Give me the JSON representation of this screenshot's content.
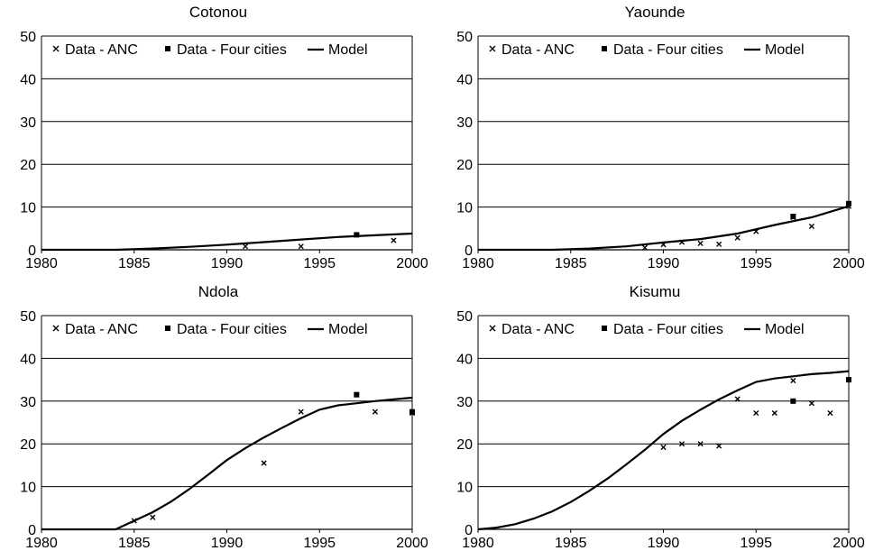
{
  "chart_data": [
    {
      "type": "line",
      "title": "Cotonou",
      "xlim": [
        1980,
        2000
      ],
      "ylim": [
        0,
        50
      ],
      "xticks": [
        "1980",
        "1985",
        "1990",
        "1995",
        "2000"
      ],
      "yticks": [
        "0",
        "10",
        "20",
        "30",
        "40",
        "50"
      ],
      "grid": "horizontal",
      "legend_position": "top",
      "legend": [
        "Data - ANC",
        "Data - Four cities",
        "Model"
      ],
      "series": [
        {
          "name": "Data - ANC",
          "marker": "x",
          "points": [
            [
              1991,
              0.8
            ],
            [
              1994,
              0.8
            ],
            [
              1999,
              2.2
            ]
          ]
        },
        {
          "name": "Data - Four cities",
          "marker": "square",
          "points": [
            [
              1997,
              3.5
            ]
          ]
        },
        {
          "name": "Model",
          "style": "line",
          "points": [
            [
              1980,
              0
            ],
            [
              1984,
              0
            ],
            [
              1986,
              0.3
            ],
            [
              1988,
              0.7
            ],
            [
              1990,
              1.2
            ],
            [
              1992,
              1.8
            ],
            [
              1994,
              2.4
            ],
            [
              1996,
              3.0
            ],
            [
              1998,
              3.4
            ],
            [
              2000,
              3.8
            ]
          ]
        }
      ]
    },
    {
      "type": "line",
      "title": "Yaounde",
      "xlim": [
        1980,
        2000
      ],
      "ylim": [
        0,
        50
      ],
      "xticks": [
        "1980",
        "1985",
        "1990",
        "1995",
        "2000"
      ],
      "yticks": [
        "0",
        "10",
        "20",
        "30",
        "40",
        "50"
      ],
      "grid": "horizontal",
      "legend_position": "top",
      "legend": [
        "Data - ANC",
        "Data - Four cities",
        "Model"
      ],
      "series": [
        {
          "name": "Data - ANC",
          "marker": "x",
          "points": [
            [
              1989,
              0.5
            ],
            [
              1990,
              1.2
            ],
            [
              1991,
              1.8
            ],
            [
              1992,
              1.5
            ],
            [
              1993,
              1.3
            ],
            [
              1994,
              2.8
            ],
            [
              1995,
              4.3
            ],
            [
              1997,
              7.6
            ],
            [
              1998,
              5.5
            ],
            [
              2000,
              10.2
            ]
          ]
        },
        {
          "name": "Data - Four cities",
          "marker": "square",
          "points": [
            [
              1997,
              7.8
            ],
            [
              2000,
              10.8
            ]
          ]
        },
        {
          "name": "Model",
          "style": "line",
          "points": [
            [
              1980,
              0
            ],
            [
              1984,
              0
            ],
            [
              1986,
              0.3
            ],
            [
              1988,
              0.8
            ],
            [
              1990,
              1.7
            ],
            [
              1992,
              2.5
            ],
            [
              1994,
              3.8
            ],
            [
              1996,
              5.8
            ],
            [
              1998,
              7.6
            ],
            [
              2000,
              10.2
            ]
          ]
        }
      ]
    },
    {
      "type": "line",
      "title": "Ndola",
      "xlim": [
        1980,
        2000
      ],
      "ylim": [
        0,
        50
      ],
      "xticks": [
        "1980",
        "1985",
        "1990",
        "1995",
        "2000"
      ],
      "yticks": [
        "0",
        "10",
        "20",
        "30",
        "40",
        "50"
      ],
      "grid": "horizontal",
      "legend_position": "top",
      "legend": [
        "Data - ANC",
        "Data - Four cities",
        "Model"
      ],
      "series": [
        {
          "name": "Data - ANC",
          "marker": "x",
          "points": [
            [
              1985,
              2.0
            ],
            [
              1986,
              2.8
            ],
            [
              1992,
              15.5
            ],
            [
              1994,
              27.5
            ],
            [
              1998,
              27.5
            ],
            [
              2000,
              27.2
            ]
          ]
        },
        {
          "name": "Data - Four cities",
          "marker": "square",
          "points": [
            [
              1997,
              31.5
            ],
            [
              2000,
              27.5
            ]
          ]
        },
        {
          "name": "Model",
          "style": "line",
          "points": [
            [
              1980,
              0
            ],
            [
              1984,
              0
            ],
            [
              1985,
              2.0
            ],
            [
              1986,
              4.0
            ],
            [
              1987,
              6.5
            ],
            [
              1988,
              9.5
            ],
            [
              1989,
              12.8
            ],
            [
              1990,
              16.2
            ],
            [
              1991,
              19.0
            ],
            [
              1992,
              21.5
            ],
            [
              1993,
              23.8
            ],
            [
              1994,
              26.0
            ],
            [
              1995,
              28.0
            ],
            [
              1996,
              29.0
            ],
            [
              1997,
              29.5
            ],
            [
              1998,
              30.0
            ],
            [
              1999,
              30.4
            ],
            [
              2000,
              30.8
            ]
          ]
        }
      ]
    },
    {
      "type": "line",
      "title": "Kisumu",
      "xlim": [
        1980,
        2000
      ],
      "ylim": [
        0,
        50
      ],
      "xticks": [
        "1980",
        "1985",
        "1990",
        "1995",
        "2000"
      ],
      "yticks": [
        "0",
        "10",
        "20",
        "30",
        "40",
        "50"
      ],
      "grid": "horizontal",
      "legend_position": "top",
      "legend": [
        "Data - ANC",
        "Data - Four cities",
        "Model"
      ],
      "series": [
        {
          "name": "Data - ANC",
          "marker": "x",
          "points": [
            [
              1990,
              19.2
            ],
            [
              1991,
              20.0
            ],
            [
              1992,
              20.0
            ],
            [
              1993,
              19.5
            ],
            [
              1994,
              30.5
            ],
            [
              1995,
              27.2
            ],
            [
              1996,
              27.2
            ],
            [
              1997,
              34.8
            ],
            [
              1998,
              29.5
            ],
            [
              1999,
              27.2
            ],
            [
              2000,
              35.0
            ]
          ]
        },
        {
          "name": "Data - Four cities",
          "marker": "square",
          "points": [
            [
              1997,
              30.0
            ],
            [
              2000,
              35.0
            ]
          ]
        },
        {
          "name": "Model",
          "style": "line",
          "points": [
            [
              1980,
              0
            ],
            [
              1981,
              0.4
            ],
            [
              1982,
              1.2
            ],
            [
              1983,
              2.5
            ],
            [
              1984,
              4.2
            ],
            [
              1985,
              6.4
            ],
            [
              1986,
              9.0
            ],
            [
              1987,
              11.9
            ],
            [
              1988,
              15.2
            ],
            [
              1989,
              18.6
            ],
            [
              1990,
              22.3
            ],
            [
              1991,
              25.4
            ],
            [
              1992,
              28.0
            ],
            [
              1993,
              30.4
            ],
            [
              1994,
              32.5
            ],
            [
              1995,
              34.5
            ],
            [
              1996,
              35.3
            ],
            [
              1997,
              35.8
            ],
            [
              1998,
              36.3
            ],
            [
              1999,
              36.6
            ],
            [
              2000,
              37.0
            ]
          ]
        }
      ]
    }
  ]
}
